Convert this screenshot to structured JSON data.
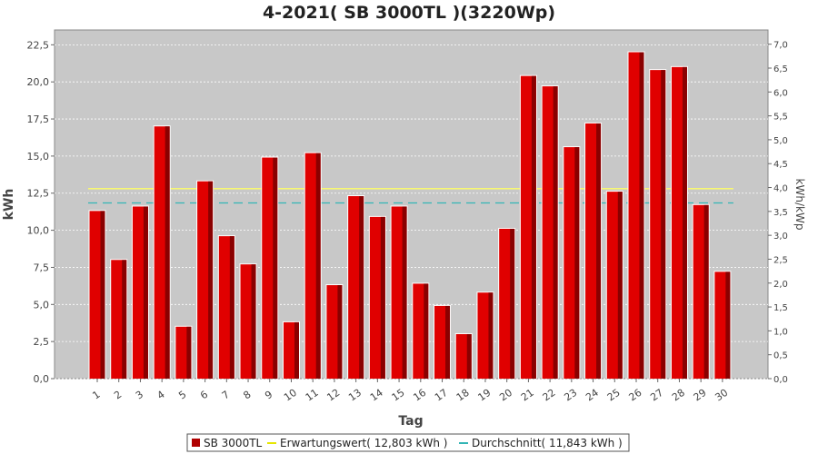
{
  "chart_data": {
    "type": "bar",
    "title": "4-2021( SB 3000TL )(3220Wp)",
    "xlabel": "Tag",
    "ylabel": "kWh",
    "ylabel_right": "kWh/kWp",
    "ylim": [
      0,
      23.5
    ],
    "ylim_right": [
      0,
      7.298
    ],
    "yticks": [
      "0,0",
      "2,5",
      "5,0",
      "7,5",
      "10,0",
      "12,5",
      "15,0",
      "17,5",
      "20,0",
      "22,5"
    ],
    "yticks_right": [
      "0,0",
      "0,5",
      "1,0",
      "1,5",
      "2,0",
      "2,5",
      "3,0",
      "3,5",
      "4,0",
      "4,5",
      "5,0",
      "5,5",
      "6,0",
      "6,5",
      "7,0"
    ],
    "categories": [
      "1",
      "2",
      "3",
      "4",
      "5",
      "6",
      "7",
      "8",
      "9",
      "10",
      "11",
      "12",
      "13",
      "14",
      "15",
      "16",
      "17",
      "18",
      "19",
      "20",
      "21",
      "22",
      "23",
      "24",
      "25",
      "26",
      "27",
      "28",
      "29",
      "30"
    ],
    "series": [
      {
        "name": "SB 3000TL",
        "color": "#e00000",
        "values": [
          11.3,
          8.0,
          11.6,
          17.0,
          3.5,
          13.3,
          9.6,
          7.7,
          14.9,
          3.8,
          15.2,
          6.3,
          12.3,
          10.9,
          11.6,
          6.4,
          4.9,
          3.0,
          5.8,
          10.1,
          20.4,
          19.7,
          15.6,
          17.2,
          12.6,
          22.0,
          20.8,
          21.0,
          11.7,
          7.2
        ]
      }
    ],
    "lines": [
      {
        "name": "Erwartungswert( 12,803 kWh )",
        "value": 12.803,
        "color": "#ffff66",
        "dash": ""
      },
      {
        "name": "Durchschnitt( 11,843 kWh )",
        "value": 11.843,
        "color": "#33b5b5",
        "dash": "10,6"
      }
    ],
    "grid": true,
    "legend_position": "bottom"
  }
}
